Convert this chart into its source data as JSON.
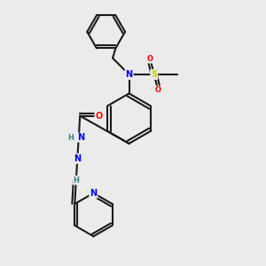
{
  "bg_color": "#ebebeb",
  "bond_color": "#1a1a1a",
  "atom_colors": {
    "N": "#0000ff",
    "O": "#ff0000",
    "S": "#cccc00",
    "H": "#408080",
    "C": "#1a1a1a"
  },
  "font_size": 7,
  "line_width": 1.5
}
